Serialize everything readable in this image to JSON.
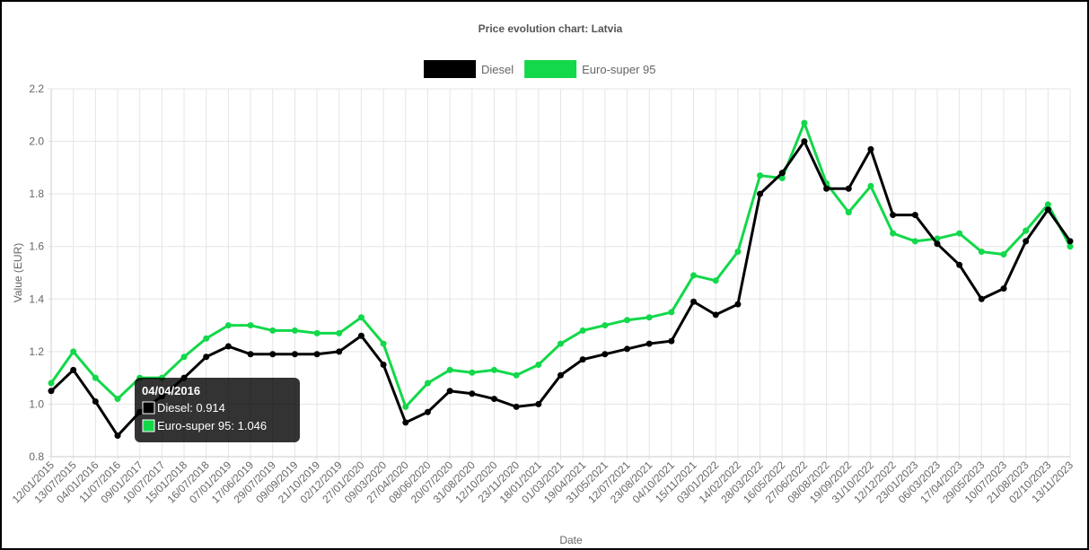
{
  "chart_data": {
    "type": "line",
    "title": "Price evolution chart: Latvia",
    "x_label": "Date",
    "y_label": "Value (EUR)",
    "categories": [
      "12/01/2015",
      "13/07/2015",
      "04/01/2016",
      "11/07/2016",
      "09/01/2017",
      "10/07/2017",
      "15/01/2018",
      "16/07/2018",
      "07/01/2019",
      "17/06/2019",
      "29/07/2019",
      "09/09/2019",
      "21/10/2019",
      "02/12/2019",
      "27/01/2020",
      "09/03/2020",
      "27/04/2020",
      "08/06/2020",
      "20/07/2020",
      "31/08/2020",
      "12/10/2020",
      "23/11/2020",
      "18/01/2021",
      "01/03/2021",
      "19/04/2021",
      "31/05/2021",
      "12/07/2021",
      "23/08/2021",
      "04/10/2021",
      "15/11/2021",
      "03/01/2022",
      "14/02/2022",
      "28/03/2022",
      "16/05/2022",
      "27/06/2022",
      "08/08/2022",
      "19/09/2022",
      "31/10/2022",
      "12/12/2022",
      "23/01/2023",
      "06/03/2023",
      "17/04/2023",
      "29/05/2023",
      "10/07/2023",
      "21/08/2023",
      "02/10/2023",
      "13/11/2023"
    ],
    "series": [
      {
        "name": "Diesel",
        "color": "#000000",
        "values": [
          1.05,
          1.13,
          1.01,
          0.88,
          0.97,
          1.03,
          1.1,
          1.18,
          1.22,
          1.19,
          1.19,
          1.19,
          1.19,
          1.2,
          1.26,
          1.15,
          0.93,
          0.97,
          1.05,
          1.04,
          1.02,
          0.99,
          1.0,
          1.11,
          1.17,
          1.19,
          1.21,
          1.23,
          1.24,
          1.39,
          1.34,
          1.38,
          1.8,
          1.88,
          2.0,
          1.82,
          1.82,
          1.97,
          1.72,
          1.72,
          1.61,
          1.53,
          1.4,
          1.44,
          1.62,
          1.74,
          1.62
        ]
      },
      {
        "name": "Euro-super 95",
        "color": "#12d84a",
        "values": [
          1.08,
          1.2,
          1.1,
          1.02,
          1.1,
          1.1,
          1.18,
          1.25,
          1.3,
          1.3,
          1.28,
          1.28,
          1.27,
          1.27,
          1.33,
          1.23,
          0.99,
          1.08,
          1.13,
          1.12,
          1.13,
          1.11,
          1.15,
          1.23,
          1.28,
          1.3,
          1.32,
          1.33,
          1.35,
          1.49,
          1.47,
          1.58,
          1.87,
          1.86,
          2.07,
          1.84,
          1.73,
          1.83,
          1.65,
          1.62,
          1.63,
          1.65,
          1.58,
          1.57,
          1.66,
          1.76,
          1.6
        ]
      }
    ],
    "ylim": [
      0.8,
      2.2
    ],
    "yticks": [
      0.8,
      {
        "value": 1,
        "label": "1.0"
      },
      1.2,
      1.4,
      1.6,
      1.8,
      {
        "value": 2,
        "label": "2.0"
      },
      2.2
    ],
    "grid": true,
    "legend": "top",
    "tooltip": {
      "title": "04/04/2016",
      "items": [
        "Diesel: 0.914",
        "Euro-super 95: 1.046"
      ]
    }
  }
}
